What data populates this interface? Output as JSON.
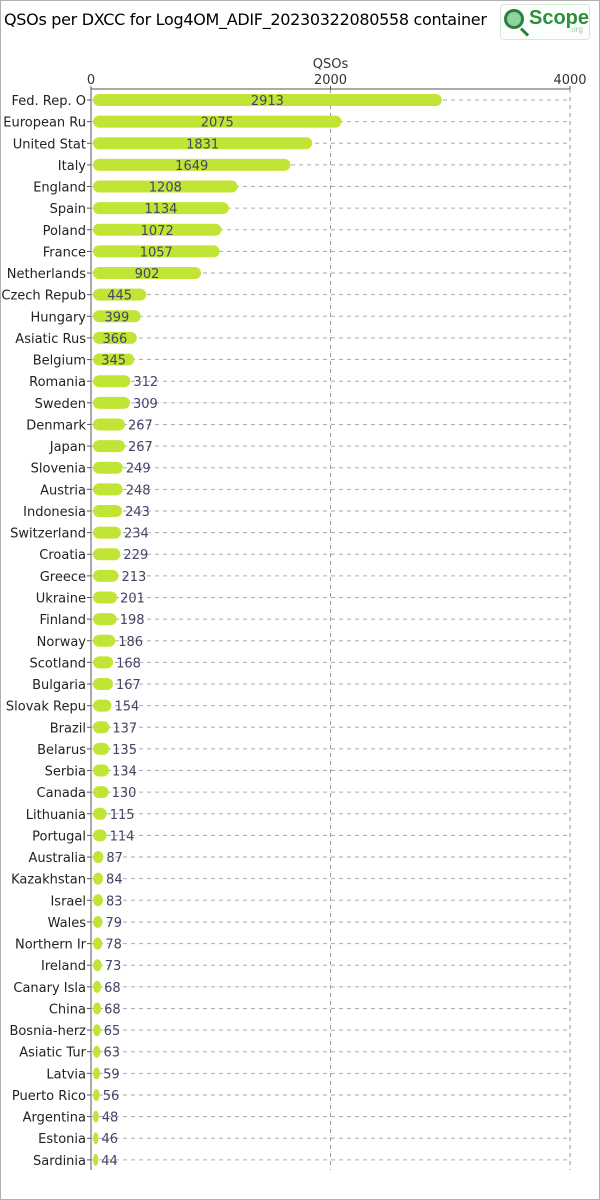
{
  "chart_title": "QSOs per DXCC for Log4OM_ADIF_20230322080558 container",
  "logo": {
    "text": "Scope",
    "suffix": ".org"
  },
  "chart_data": {
    "type": "bar",
    "orientation": "horizontal",
    "xlabel": "QSOs",
    "xlim": [
      0,
      4000
    ],
    "xticks": [
      0,
      2000,
      4000
    ],
    "grid": true,
    "color": "#c1e535",
    "categories": [
      "Fed. Rep. O",
      "European Ru",
      "United Stat",
      "Italy",
      "England",
      "Spain",
      "Poland",
      "France",
      "Netherlands",
      "Czech Repub",
      "Hungary",
      "Asiatic Rus",
      "Belgium",
      "Romania",
      "Sweden",
      "Denmark",
      "Japan",
      "Slovenia",
      "Austria",
      "Indonesia",
      "Switzerland",
      "Croatia",
      "Greece",
      "Ukraine",
      "Finland",
      "Norway",
      "Scotland",
      "Bulgaria",
      "Slovak Repu",
      "Brazil",
      "Belarus",
      "Serbia",
      "Canada",
      "Lithuania",
      "Portugal",
      "Australia",
      "Kazakhstan",
      "Israel",
      "Wales",
      "Northern Ir",
      "Ireland",
      "Canary Isla",
      "China",
      "Bosnia-herz",
      "Asiatic Tur",
      "Latvia",
      "Puerto Rico",
      "Argentina",
      "Estonia",
      "Sardinia"
    ],
    "values": [
      2913,
      2075,
      1831,
      1649,
      1208,
      1134,
      1072,
      1057,
      902,
      445,
      399,
      366,
      345,
      312,
      309,
      267,
      267,
      249,
      248,
      243,
      234,
      229,
      213,
      201,
      198,
      186,
      168,
      167,
      154,
      137,
      135,
      134,
      130,
      115,
      114,
      87,
      84,
      83,
      79,
      78,
      73,
      68,
      68,
      65,
      63,
      59,
      56,
      48,
      46,
      44
    ]
  }
}
